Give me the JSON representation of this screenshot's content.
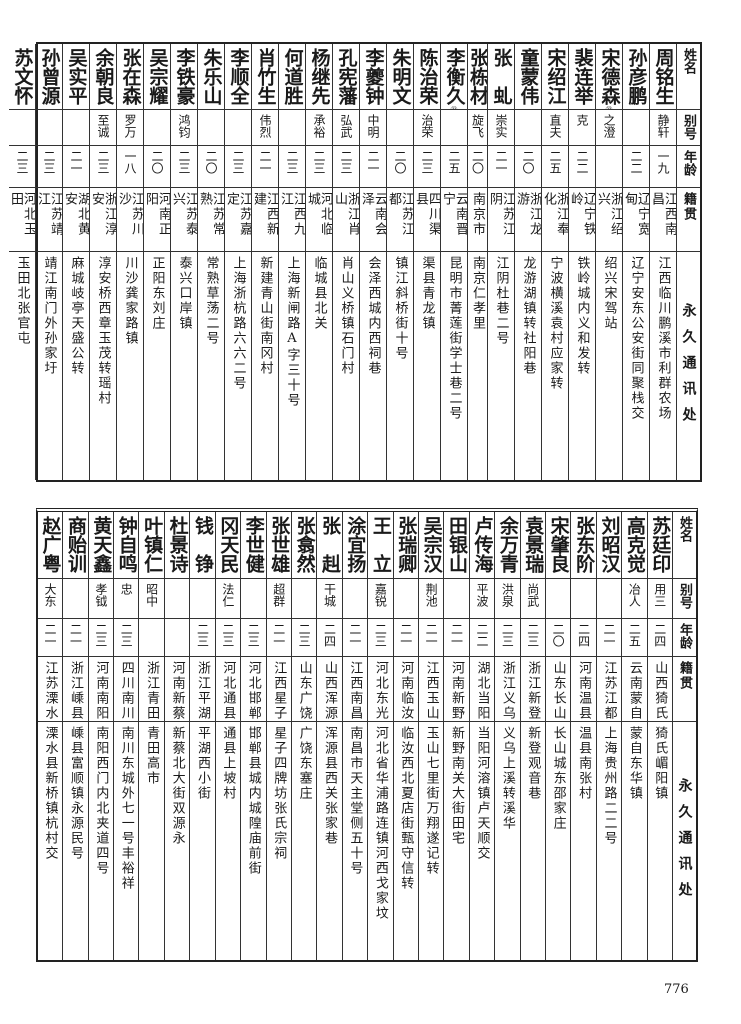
{
  "headers": {
    "name": "姓名",
    "alias": "别号",
    "age": "年龄",
    "origin": "籍贯",
    "address": "永久通讯处"
  },
  "tables": [
    {
      "rows": [
        {
          "name": "周铭生",
          "alias": "静轩",
          "age": "一九",
          "origin": "江西南昌",
          "address": "江西临川鹏溪市利群农场"
        },
        {
          "name": "孙彦鹏",
          "alias": "",
          "age": "二二",
          "origin": "辽宁宽甸",
          "address": "辽宁安东公安街同聚栈交"
        },
        {
          "name": "宋德森",
          "note": "㉒",
          "alias": "之澄",
          "age": "",
          "origin": "浙江绍兴",
          "address": "绍兴宋驾站"
        },
        {
          "name": "裴连举",
          "alias": "克",
          "age": "二二",
          "origin": "辽宁铁岭",
          "address": "铁岭城内义和发转"
        },
        {
          "name": "宋绍江",
          "alias": "直夫",
          "age": "二五",
          "origin": "浙江奉化",
          "address": "宁波横溪袁村应家转"
        },
        {
          "name": "童蒙伟",
          "alias": "",
          "age": "二〇",
          "origin": "浙江龙游",
          "address": "龙游湖镇转社阳巷"
        },
        {
          "name": "张　虬",
          "alias": "崇实",
          "age": "二一",
          "origin": "江苏江阴",
          "address": "江阴杜巷二号"
        },
        {
          "name": "张栋材",
          "alias": "旋飞",
          "age": "二〇",
          "origin": "南京市",
          "address": "南京仁孝里"
        },
        {
          "name": "李衡久",
          "note": "㉑",
          "alias": "",
          "age": "二五",
          "origin": "云南晋宁",
          "address": "昆明市菁莲街学士巷二号"
        },
        {
          "name": "陈治荣",
          "alias": "治荣",
          "age": "二三",
          "origin": "四川渠县",
          "address": "渠县青龙镇"
        },
        {
          "name": "朱明文",
          "alias": "",
          "age": "二〇",
          "origin": "江苏江都",
          "address": "镇江斜桥街十号"
        },
        {
          "name": "李夔钟",
          "alias": "中明",
          "age": "二一",
          "origin": "云南会泽",
          "address": "会泽西城内西祠巷"
        },
        {
          "name": "孔宪藩",
          "alias": "弘武",
          "age": "二三",
          "origin": "浙江肖山",
          "address": "肖山义桥镇石门村"
        },
        {
          "name": "杨继先",
          "alias": "承裕",
          "age": "二三",
          "origin": "河北临城",
          "address": "临城县北关"
        },
        {
          "name": "何道胜",
          "alias": "",
          "age": "二三",
          "origin": "江西九江",
          "address": "上海新闸路A字三十号"
        },
        {
          "name": "肖竹生",
          "alias": "伟烈",
          "age": "二一",
          "origin": "江西新建",
          "address": "新建青山街南冈村"
        },
        {
          "name": "李顺全",
          "alias": "",
          "age": "二三",
          "origin": "江苏嘉定",
          "address": "上海浙杭路六六二号"
        },
        {
          "name": "朱乐山",
          "alias": "",
          "age": "二〇",
          "origin": "江苏常熟",
          "address": "常熟草荡二号"
        },
        {
          "name": "李铁豪",
          "alias": "鸿钧",
          "age": "二三",
          "origin": "江苏泰兴",
          "address": "泰兴口岸镇"
        },
        {
          "name": "吴宗耀",
          "alias": "",
          "age": "二〇",
          "origin": "河南正阳",
          "address": "正阳东刘庄"
        },
        {
          "name": "张在森",
          "alias": "罗万",
          "age": "一八",
          "origin": "江苏川沙",
          "address": "川沙龚家路镇"
        },
        {
          "name": "余朝良",
          "alias": "至诚",
          "age": "二三",
          "origin": "浙江淳安",
          "address": "淳安桥西章玉茂转瑶村"
        },
        {
          "name": "吴实平",
          "alias": "",
          "age": "二一",
          "origin": "湖北黄安",
          "address": "麻城岐亭天盛公转"
        },
        {
          "name": "孙曾源",
          "alias": "",
          "age": "二三",
          "origin": "江苏靖江",
          "address": "靖江南门外孙家圩"
        },
        {
          "name": "苏文怀",
          "alias": "",
          "age": "二三",
          "origin": "河北玉田",
          "address": "玉田北张官屯"
        }
      ]
    },
    {
      "rows": [
        {
          "name": "苏廷印",
          "alias": "用三",
          "age": "二四",
          "origin": "山西猗氏",
          "address": "猗氏嵋阳镇"
        },
        {
          "name": "高克觉",
          "alias": "冶人",
          "age": "二五",
          "origin": "云南蒙自",
          "address": "蒙自东华镇"
        },
        {
          "name": "刘昭汉",
          "alias": "",
          "age": "二一",
          "origin": "江苏江都",
          "address": "上海贵州路二二号"
        },
        {
          "name": "张东阶",
          "alias": "",
          "age": "二四",
          "origin": "河南温县",
          "address": "温县南张村"
        },
        {
          "name": "宋肇良",
          "alias": "",
          "age": "二〇",
          "origin": "山东长山",
          "address": "长山城东邵家庄"
        },
        {
          "name": "袁景瑞",
          "alias": "尚武",
          "age": "二三",
          "origin": "浙江新登",
          "address": "新登观音巷"
        },
        {
          "name": "余万青",
          "alias": "洪泉",
          "age": "二三",
          "origin": "浙江义乌",
          "address": "义乌上溪转溪华"
        },
        {
          "name": "卢传海",
          "alias": "平波",
          "age": "二二",
          "origin": "湖北当阳",
          "address": "当阳河溶镇卢天顺交"
        },
        {
          "name": "田银山",
          "alias": "",
          "age": "二一",
          "origin": "河南新野",
          "address": "新野南关大街田宅"
        },
        {
          "name": "吴宗汉",
          "alias": "荆池",
          "age": "二一",
          "origin": "江西玉山",
          "address": "玉山七里街万翔遂记转"
        },
        {
          "name": "张瑞卿",
          "alias": "",
          "age": "二一",
          "origin": "河南临汝",
          "address": "临汝西北夏店街甄守信转"
        },
        {
          "name": "王　立",
          "alias": "嘉锐",
          "age": "二三",
          "origin": "河北东光",
          "address": "河北省华浦路连镇河西戈家坟"
        },
        {
          "name": "涂宜扬",
          "alias": "",
          "age": "二一",
          "origin": "江西南昌",
          "address": "南昌市天主堂侧五十号"
        },
        {
          "name": "张　赳",
          "alias": "干城",
          "age": "二四",
          "origin": "山西浑源",
          "address": "浑源县西关张家巷"
        },
        {
          "name": "张翕然",
          "alias": "",
          "age": "二三",
          "origin": "山东广饶",
          "address": "广饶东塞庄"
        },
        {
          "name": "张世雄",
          "alias": "超群",
          "age": "二一",
          "origin": "江西星子",
          "address": "星子四牌坊张氏宗祠"
        },
        {
          "name": "李世健",
          "alias": "",
          "age": "二三",
          "origin": "河北邯郸",
          "address": "邯郸县城内城隍庙前街"
        },
        {
          "name": "冈天民",
          "alias": "法仁",
          "age": "二三",
          "origin": "河北通县",
          "address": "通县上坡村"
        },
        {
          "name": "钱　铮",
          "alias": "",
          "age": "二三",
          "origin": "浙江平湖",
          "address": "平湖西小街"
        },
        {
          "name": "杜景诗",
          "alias": "",
          "age": "",
          "origin": "河南新蔡",
          "address": "新蔡北大街双源永"
        },
        {
          "name": "叶镇仁",
          "alias": "昭中",
          "age": "",
          "origin": "浙江青田",
          "address": "青田高市"
        },
        {
          "name": "钟自鸣",
          "alias": "忠",
          "age": "二三",
          "origin": "四川南川",
          "address": "南川东城外七一号丰裕祥"
        },
        {
          "name": "黄天鑫",
          "alias": "孝钺",
          "age": "二三",
          "origin": "河南南阳",
          "address": "南阳西门内北夹道四号"
        },
        {
          "name": "商贻训",
          "alias": "",
          "age": "二一",
          "origin": "浙江嵊县",
          "address": "嵊县富顺镇永源民号"
        },
        {
          "name": "赵广粤",
          "alias": "大东",
          "age": "二一",
          "origin": "江苏溧水",
          "address": "溧水县新桥镇杭村交"
        }
      ]
    }
  ],
  "page_number": "776"
}
